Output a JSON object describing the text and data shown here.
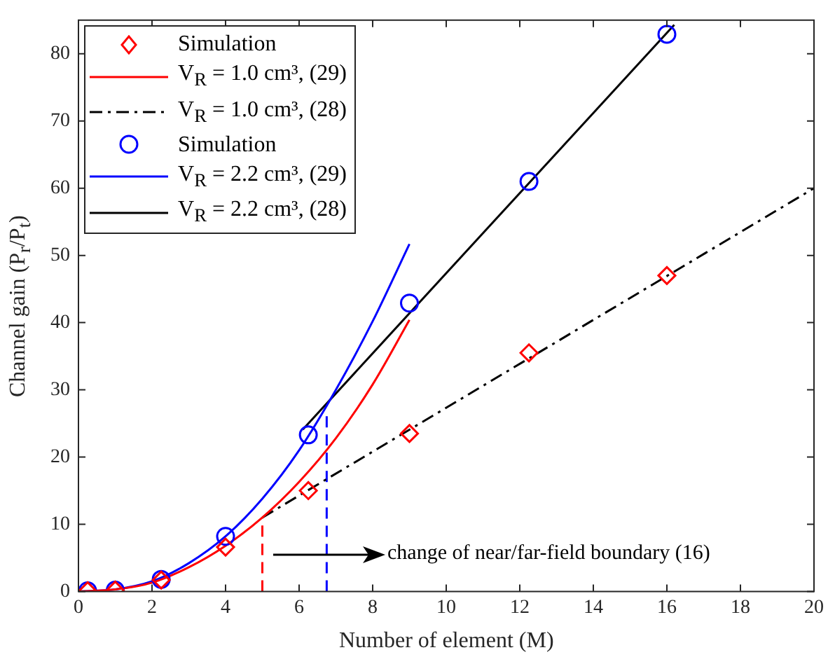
{
  "chart_data": {
    "type": "line",
    "xlabel": "Number of element (M)",
    "ylabel": "Channel gain (P$_{r}$/P$_{t}$)",
    "xlim": [
      0,
      20
    ],
    "xticks": [
      0,
      2,
      4,
      6,
      8,
      10,
      12,
      14,
      16,
      18,
      20
    ],
    "ylim": [
      0,
      85
    ],
    "yticks": [
      0,
      10,
      20,
      30,
      40,
      50,
      60,
      70,
      80
    ],
    "grid": false,
    "legend": "top left",
    "series": [
      {
        "type": "scatter",
        "name": "Simulation",
        "color": "#ff0000",
        "marker": "diamond",
        "x": [
          0.25,
          1,
          2.25,
          4,
          6.25,
          9,
          12.25,
          16
        ],
        "values": [
          0.1,
          0.2,
          1.7,
          6.6,
          15.0,
          23.5,
          35.5,
          47.0
        ]
      },
      {
        "name": "V$_{R}$ = 1.0 cm³, (29)",
        "color": "#ff0000",
        "line_style": "solid",
        "x": [
          0,
          1,
          2,
          3,
          4,
          5,
          6,
          7,
          8,
          9
        ],
        "values": [
          0,
          0.3,
          1.3,
          3.6,
          6.8,
          11,
          16.3,
          22.8,
          30.8,
          40.4
        ]
      },
      {
        "name": "V$_{R}$ = 1.0 cm³, (28)",
        "color": "#000000",
        "line_style": "dashdot",
        "x": [
          5,
          20
        ],
        "values": [
          11,
          60
        ]
      },
      {
        "type": "scatter",
        "name": "Simulation",
        "color": "#0000ff",
        "marker": "circle",
        "x": [
          0.25,
          1,
          2.25,
          4,
          6.25,
          9,
          12.25,
          16
        ],
        "values": [
          0.1,
          0.2,
          1.8,
          8.2,
          23.3,
          42.9,
          61.0,
          82.9
        ]
      },
      {
        "name": "V$_{R}$ = 2.2 cm³, (29)",
        "color": "#0000ff",
        "line_style": "solid",
        "x": [
          0,
          1,
          2,
          3,
          4,
          5,
          6,
          7,
          8,
          9
        ],
        "values": [
          0,
          0.3,
          1.5,
          4.2,
          8.2,
          13.8,
          21.0,
          30.0,
          40.2,
          51.7
        ]
      },
      {
        "name": "V$_{R}$ = 2.2 cm³, (28)",
        "color": "#000000",
        "line_style": "solid",
        "x": [
          6.1,
          16.2
        ],
        "values": [
          24.1,
          84.3
        ]
      },
      {
        "color": "#ff0000",
        "line_style": "dashed",
        "x": [
          5,
          5
        ],
        "values": [
          0,
          11
        ]
      },
      {
        "color": "#0000ff",
        "line_style": "dashed",
        "x": [
          6.75,
          6.75
        ],
        "values": [
          0,
          27
        ]
      }
    ],
    "annotations": [
      "change of near/far-field boundary (16)"
    ]
  }
}
